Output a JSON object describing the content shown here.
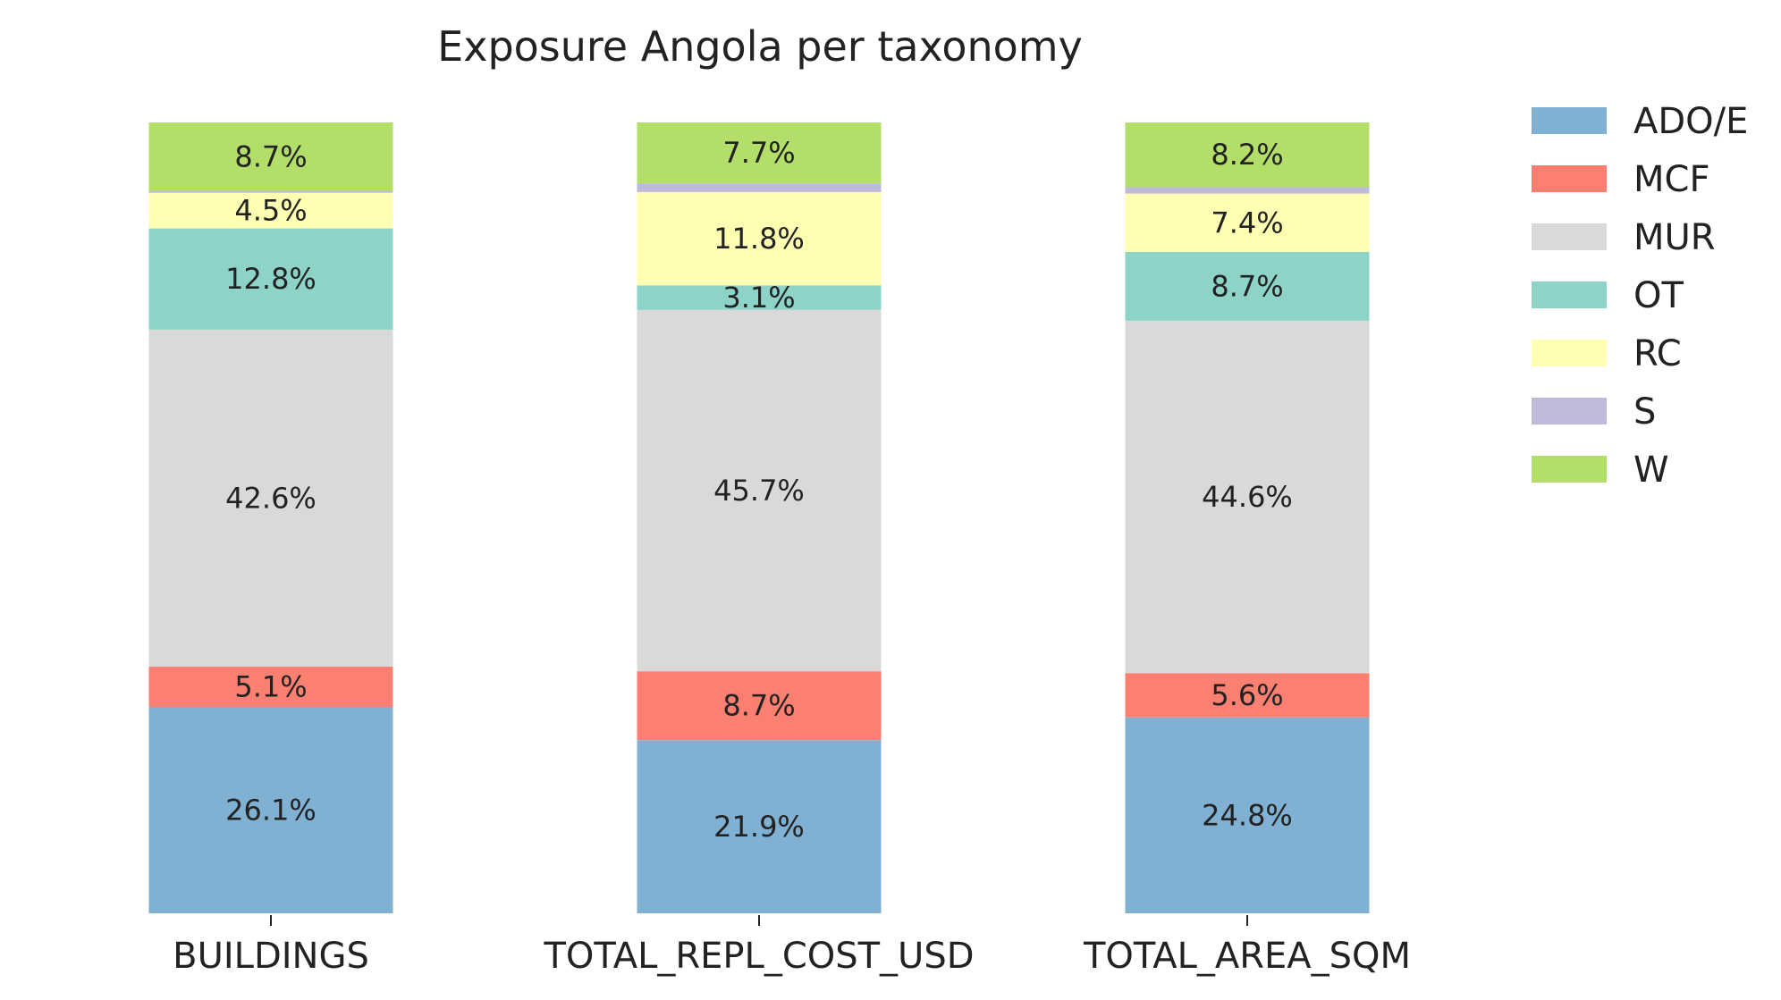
{
  "chart_data": {
    "type": "bar",
    "stacked": true,
    "normalized": true,
    "title": "Exposure Angola per taxonomy",
    "xlabel": "",
    "ylabel": "",
    "ylim": [
      0,
      100
    ],
    "grid": false,
    "legend_position": "right",
    "categories": [
      "BUILDINGS",
      "TOTAL_REPL_COST_USD",
      "TOTAL_AREA_SQM"
    ],
    "series": [
      {
        "name": "ADO/E",
        "color": "#80b1d3",
        "values": [
          26.1,
          21.9,
          24.8
        ],
        "labels": [
          "26.1%",
          "21.9%",
          "24.8%"
        ]
      },
      {
        "name": "MCF",
        "color": "#fb8072",
        "values": [
          5.1,
          8.7,
          5.6
        ],
        "labels": [
          "5.1%",
          "8.7%",
          "5.6%"
        ]
      },
      {
        "name": "MUR",
        "color": "#d9d9d9",
        "values": [
          42.6,
          45.7,
          44.6
        ],
        "labels": [
          "42.6%",
          "45.7%",
          "44.6%"
        ]
      },
      {
        "name": "OT",
        "color": "#8dd3c7",
        "values": [
          12.8,
          3.1,
          8.7
        ],
        "labels": [
          "12.8%",
          "3.1%",
          "8.7%"
        ]
      },
      {
        "name": "RC",
        "color": "#ffffb3",
        "values": [
          4.5,
          11.8,
          7.4
        ],
        "labels": [
          "4.5%",
          "11.8%",
          "7.4%"
        ]
      },
      {
        "name": "S",
        "color": "#bebada",
        "values": [
          0.2,
          1.1,
          0.8
        ],
        "labels": [
          "",
          "",
          ""
        ]
      },
      {
        "name": "W",
        "color": "#b3de69",
        "values": [
          8.7,
          7.7,
          8.2
        ],
        "labels": [
          "8.7%",
          "7.7%",
          "8.2%"
        ]
      }
    ]
  }
}
